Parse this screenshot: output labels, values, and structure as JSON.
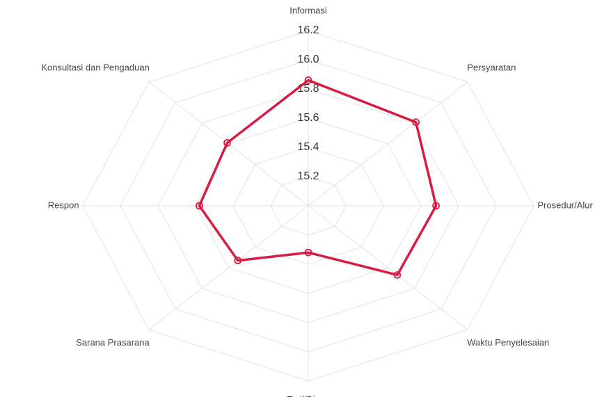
{
  "chart_data": {
    "type": "radar",
    "categories": [
      "Informasi",
      "Persyaratan",
      "Prosedur/Alur",
      "Waktu Penyelesaian",
      "Tarif/Biaya",
      "Sarana Prasarana",
      "Respon",
      "Konsultasi dan Pengaduan"
    ],
    "values": [
      15.86,
      15.81,
      15.68,
      15.67,
      15.32,
      15.53,
      15.58,
      15.61
    ],
    "color": "#d81b43",
    "ylim": [
      15.0,
      16.2
    ],
    "yticks": [
      15.2,
      15.4,
      15.6,
      15.8,
      {
        "value": 16.0,
        "label": "16.0"
      },
      16.2
    ],
    "grid": true
  }
}
